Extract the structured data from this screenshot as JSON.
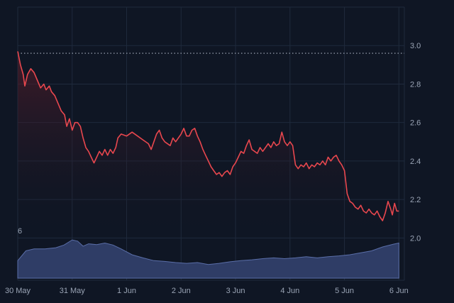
{
  "chart_data": {
    "type": "area",
    "x_tick_labels": [
      "30 May",
      "31 May",
      "1 Jun",
      "2 Jun",
      "3 Jun",
      "4 Jun",
      "5 Jun",
      "6 Jun"
    ],
    "y_tick_labels": [
      "2.0",
      "2.2",
      "2.4",
      "2.6",
      "2.8",
      "3.0"
    ],
    "ylim": [
      1.78,
      3.2
    ],
    "xlim": [
      0,
      7.1
    ],
    "reference_line": 2.96,
    "volume_marker": "6",
    "grid": true,
    "series": [
      {
        "values": [
          [
            0.0,
            2.97
          ],
          [
            0.05,
            2.9
          ],
          [
            0.1,
            2.85
          ],
          [
            0.13,
            2.79
          ],
          [
            0.18,
            2.85
          ],
          [
            0.24,
            2.88
          ],
          [
            0.3,
            2.86
          ],
          [
            0.36,
            2.82
          ],
          [
            0.42,
            2.78
          ],
          [
            0.48,
            2.8
          ],
          [
            0.52,
            2.77
          ],
          [
            0.58,
            2.79
          ],
          [
            0.62,
            2.76
          ],
          [
            0.68,
            2.74
          ],
          [
            0.74,
            2.7
          ],
          [
            0.8,
            2.66
          ],
          [
            0.86,
            2.64
          ],
          [
            0.9,
            2.58
          ],
          [
            0.95,
            2.62
          ],
          [
            1.0,
            2.56
          ],
          [
            1.05,
            2.6
          ],
          [
            1.1,
            2.6
          ],
          [
            1.15,
            2.58
          ],
          [
            1.2,
            2.52
          ],
          [
            1.25,
            2.47
          ],
          [
            1.3,
            2.45
          ],
          [
            1.35,
            2.42
          ],
          [
            1.4,
            2.39
          ],
          [
            1.45,
            2.42
          ],
          [
            1.5,
            2.45
          ],
          [
            1.55,
            2.43
          ],
          [
            1.6,
            2.46
          ],
          [
            1.65,
            2.43
          ],
          [
            1.7,
            2.46
          ],
          [
            1.75,
            2.44
          ],
          [
            1.8,
            2.47
          ],
          [
            1.84,
            2.52
          ],
          [
            1.9,
            2.54
          ],
          [
            2.0,
            2.53
          ],
          [
            2.1,
            2.55
          ],
          [
            2.2,
            2.53
          ],
          [
            2.3,
            2.51
          ],
          [
            2.4,
            2.49
          ],
          [
            2.45,
            2.46
          ],
          [
            2.5,
            2.5
          ],
          [
            2.55,
            2.54
          ],
          [
            2.6,
            2.56
          ],
          [
            2.65,
            2.52
          ],
          [
            2.7,
            2.5
          ],
          [
            2.8,
            2.48
          ],
          [
            2.85,
            2.52
          ],
          [
            2.9,
            2.5
          ],
          [
            3.0,
            2.54
          ],
          [
            3.05,
            2.57
          ],
          [
            3.1,
            2.53
          ],
          [
            3.15,
            2.53
          ],
          [
            3.2,
            2.56
          ],
          [
            3.25,
            2.57
          ],
          [
            3.3,
            2.53
          ],
          [
            3.35,
            2.5
          ],
          [
            3.4,
            2.46
          ],
          [
            3.45,
            2.43
          ],
          [
            3.5,
            2.4
          ],
          [
            3.55,
            2.37
          ],
          [
            3.6,
            2.35
          ],
          [
            3.65,
            2.33
          ],
          [
            3.7,
            2.34
          ],
          [
            3.75,
            2.32
          ],
          [
            3.8,
            2.34
          ],
          [
            3.85,
            2.35
          ],
          [
            3.9,
            2.33
          ],
          [
            3.95,
            2.37
          ],
          [
            4.0,
            2.39
          ],
          [
            4.05,
            2.42
          ],
          [
            4.1,
            2.45
          ],
          [
            4.15,
            2.44
          ],
          [
            4.2,
            2.48
          ],
          [
            4.25,
            2.51
          ],
          [
            4.3,
            2.46
          ],
          [
            4.35,
            2.45
          ],
          [
            4.4,
            2.44
          ],
          [
            4.45,
            2.47
          ],
          [
            4.5,
            2.45
          ],
          [
            4.55,
            2.47
          ],
          [
            4.6,
            2.49
          ],
          [
            4.65,
            2.47
          ],
          [
            4.7,
            2.5
          ],
          [
            4.75,
            2.48
          ],
          [
            4.8,
            2.49
          ],
          [
            4.85,
            2.55
          ],
          [
            4.9,
            2.5
          ],
          [
            4.95,
            2.48
          ],
          [
            5.0,
            2.5
          ],
          [
            5.05,
            2.48
          ],
          [
            5.1,
            2.38
          ],
          [
            5.15,
            2.36
          ],
          [
            5.2,
            2.38
          ],
          [
            5.25,
            2.37
          ],
          [
            5.3,
            2.39
          ],
          [
            5.35,
            2.36
          ],
          [
            5.4,
            2.38
          ],
          [
            5.45,
            2.37
          ],
          [
            5.5,
            2.39
          ],
          [
            5.55,
            2.38
          ],
          [
            5.6,
            2.4
          ],
          [
            5.65,
            2.38
          ],
          [
            5.7,
            2.42
          ],
          [
            5.75,
            2.4
          ],
          [
            5.8,
            2.42
          ],
          [
            5.85,
            2.43
          ],
          [
            5.9,
            2.4
          ],
          [
            5.95,
            2.38
          ],
          [
            6.0,
            2.35
          ],
          [
            6.05,
            2.23
          ],
          [
            6.1,
            2.19
          ],
          [
            6.15,
            2.18
          ],
          [
            6.2,
            2.16
          ],
          [
            6.25,
            2.15
          ],
          [
            6.3,
            2.17
          ],
          [
            6.35,
            2.14
          ],
          [
            6.4,
            2.13
          ],
          [
            6.45,
            2.15
          ],
          [
            6.5,
            2.13
          ],
          [
            6.55,
            2.12
          ],
          [
            6.6,
            2.14
          ],
          [
            6.65,
            2.11
          ],
          [
            6.7,
            2.09
          ],
          [
            6.75,
            2.13
          ],
          [
            6.8,
            2.19
          ],
          [
            6.85,
            2.15
          ],
          [
            6.88,
            2.12
          ],
          [
            6.92,
            2.18
          ],
          [
            6.96,
            2.14
          ],
          [
            7.0,
            2.14
          ]
        ]
      }
    ],
    "volume": {
      "values": [
        [
          0.0,
          0.45
        ],
        [
          0.15,
          0.7
        ],
        [
          0.3,
          0.75
        ],
        [
          0.5,
          0.75
        ],
        [
          0.7,
          0.78
        ],
        [
          0.85,
          0.85
        ],
        [
          1.0,
          0.98
        ],
        [
          1.1,
          0.95
        ],
        [
          1.2,
          0.82
        ],
        [
          1.3,
          0.88
        ],
        [
          1.45,
          0.86
        ],
        [
          1.6,
          0.9
        ],
        [
          1.75,
          0.85
        ],
        [
          1.9,
          0.75
        ],
        [
          2.1,
          0.6
        ],
        [
          2.3,
          0.52
        ],
        [
          2.5,
          0.45
        ],
        [
          2.7,
          0.43
        ],
        [
          2.9,
          0.4
        ],
        [
          3.1,
          0.38
        ],
        [
          3.3,
          0.4
        ],
        [
          3.5,
          0.35
        ],
        [
          3.7,
          0.38
        ],
        [
          3.9,
          0.42
        ],
        [
          4.1,
          0.45
        ],
        [
          4.3,
          0.47
        ],
        [
          4.5,
          0.5
        ],
        [
          4.7,
          0.52
        ],
        [
          4.9,
          0.5
        ],
        [
          5.1,
          0.52
        ],
        [
          5.3,
          0.55
        ],
        [
          5.5,
          0.52
        ],
        [
          5.7,
          0.55
        ],
        [
          5.9,
          0.57
        ],
        [
          6.1,
          0.6
        ],
        [
          6.3,
          0.65
        ],
        [
          6.5,
          0.7
        ],
        [
          6.7,
          0.8
        ],
        [
          6.9,
          0.87
        ],
        [
          7.0,
          0.9
        ]
      ]
    }
  },
  "colors": {
    "background": "#0f1624",
    "line": "#e8474e",
    "area_top": "#5a1d2a",
    "volume_fill": "#2f3d66",
    "volume_stroke": "#5a6ea8",
    "grid": "#1f2a3c",
    "axis_text": "#9aa4b5",
    "reference": "#a8b0bf"
  }
}
